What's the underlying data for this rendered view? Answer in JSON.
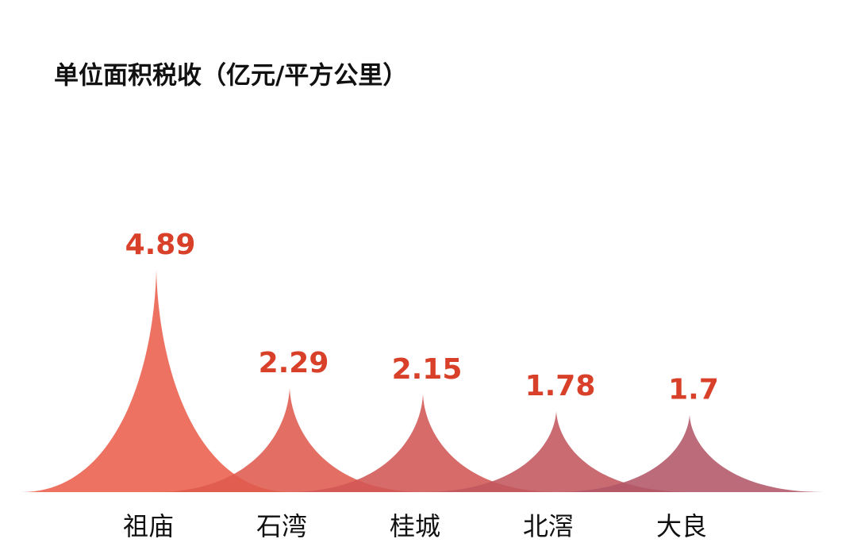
{
  "chart_data": {
    "type": "spike",
    "title": "单位面积税收（亿元/平方公里）",
    "categories": [
      "祖庙",
      "石湾",
      "桂城",
      "北滘",
      "大良"
    ],
    "values": [
      4.89,
      2.29,
      2.15,
      1.78,
      1.7
    ],
    "colors": [
      "#ea5f4b",
      "#df5a4d",
      "#d25755",
      "#c2575d",
      "#b25766"
    ],
    "label_color": "#d8402a"
  }
}
